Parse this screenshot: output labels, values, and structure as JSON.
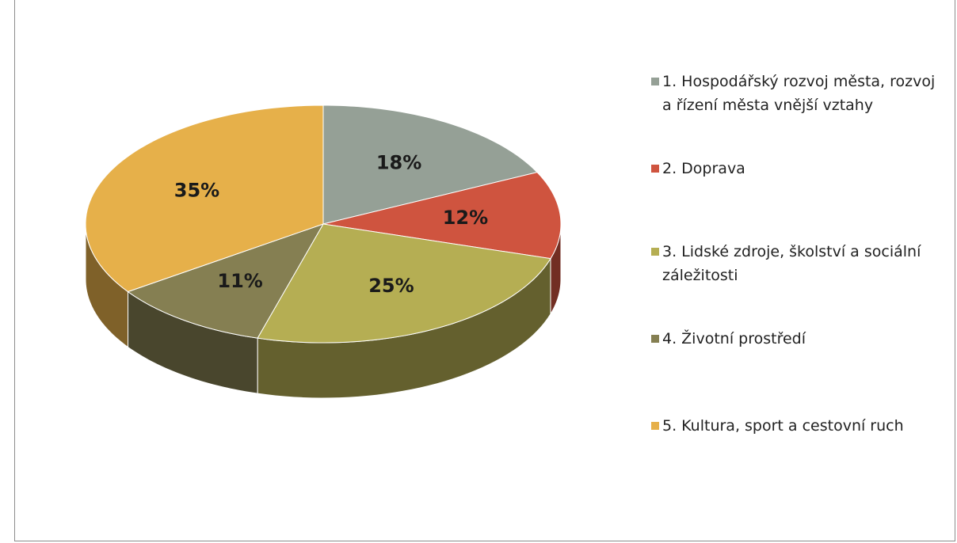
{
  "chart_data": {
    "type": "pie",
    "categories": [
      "1. Hospodářský rozvoj města, rozvoj a řízení města vnější vztahy",
      "2. Doprava",
      "3. Lidské zdroje, školství a sociální záležitosti",
      "4. Životní prostředí",
      "5. Kultura, sport a  cestovní ruch"
    ],
    "values": [
      18,
      12,
      25,
      11,
      35
    ],
    "value_labels": [
      "18%",
      "12%",
      "25%",
      "11%",
      "35%"
    ],
    "colors": [
      "#95a096",
      "#cf543f",
      "#b5ae53",
      "#857f52",
      "#e6b04a"
    ],
    "legend": "right"
  }
}
